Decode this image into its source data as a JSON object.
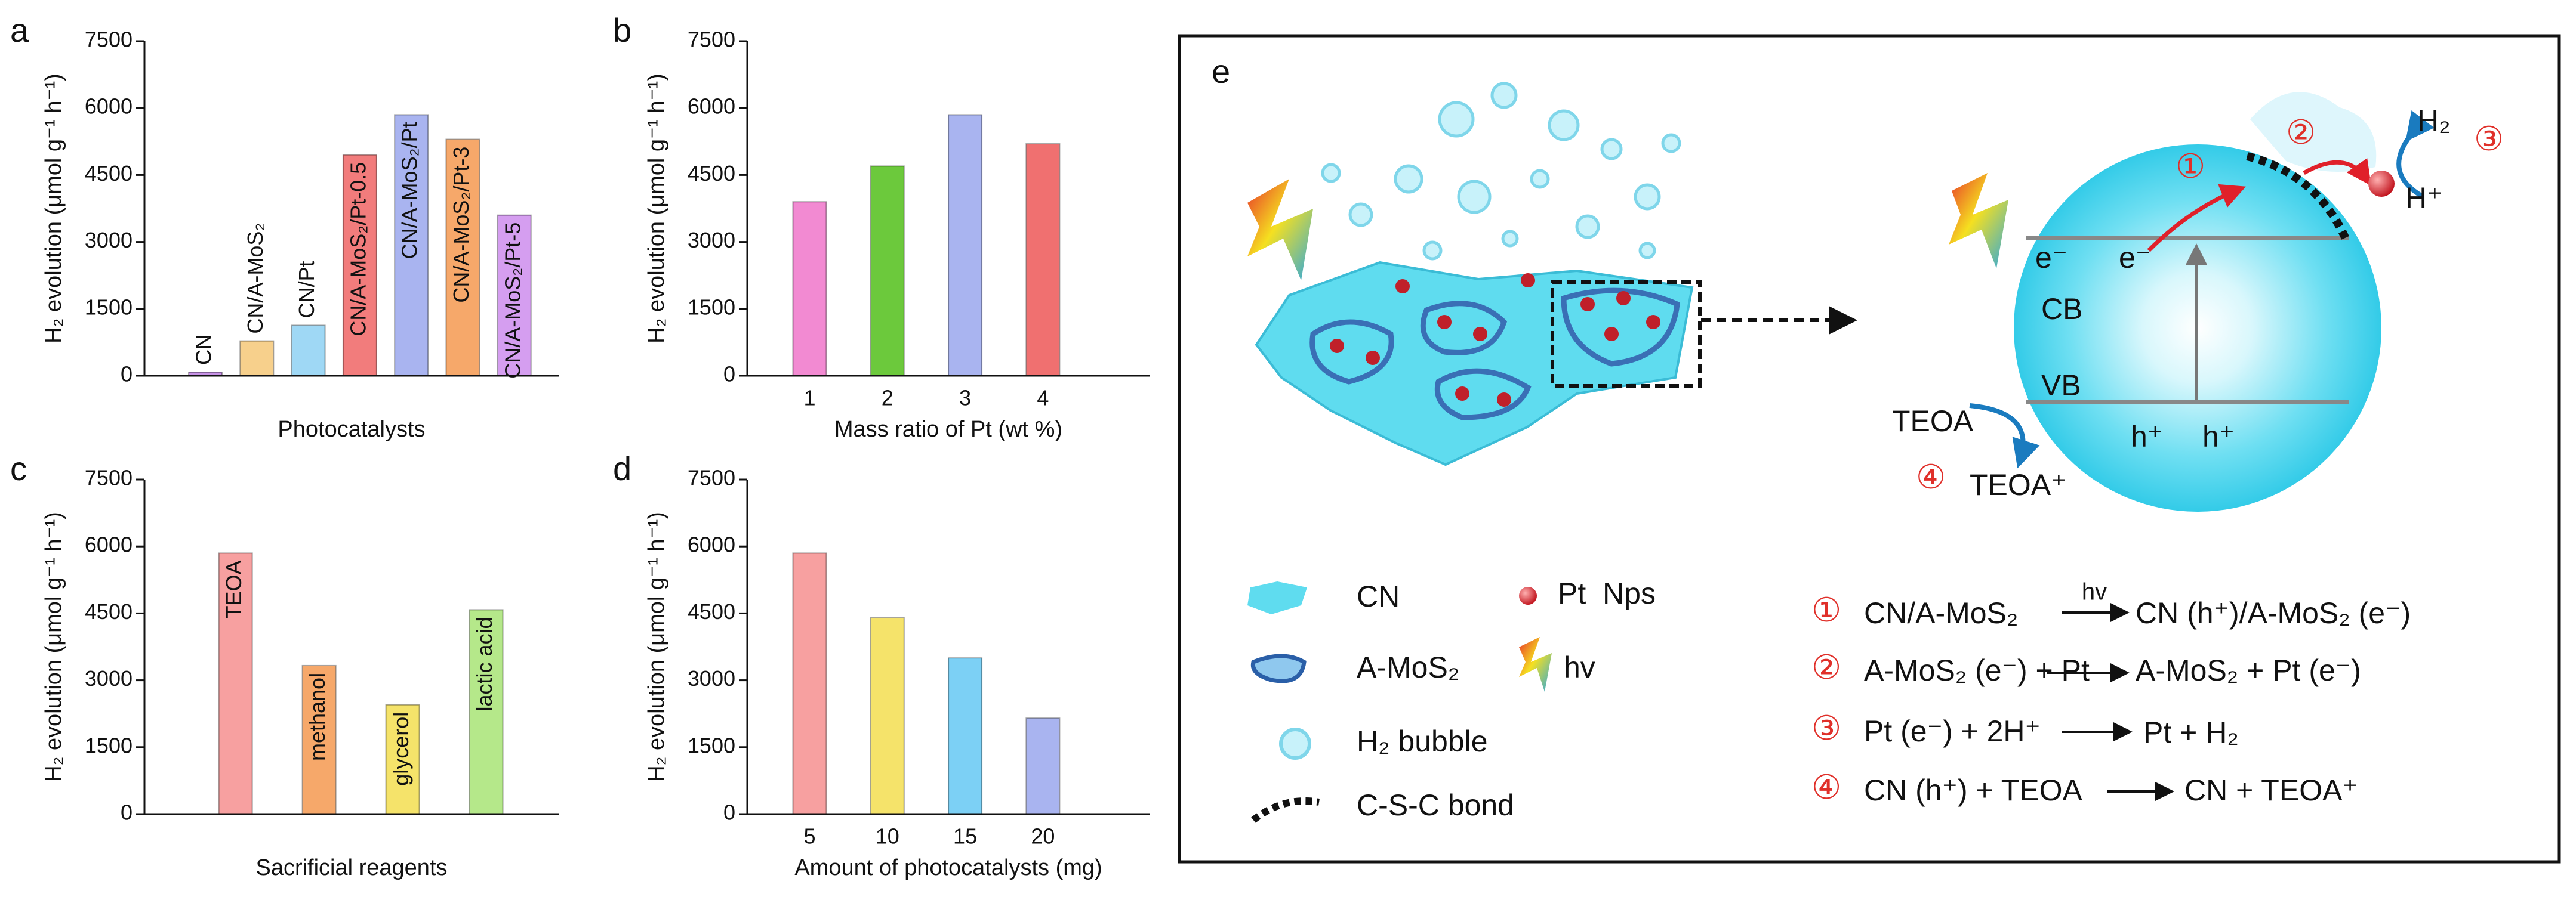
{
  "chart_data": [
    {
      "type": "bar",
      "panel": "a",
      "ylabel": "H₂ evolution (μmol g⁻¹ h⁻¹)",
      "xlabel": "Photocatalysts",
      "category_labels": "bar",
      "categories": [
        "CN",
        "CN/A-MoS₂",
        "CN/Pt",
        "CN/A-MoS₂/Pt-0.5",
        "CN/A-MoS₂/Pt",
        "CN/A-MoS₂/Pt-3",
        "CN/A-MoS₂/Pt-5"
      ],
      "values": [
        80,
        780,
        1130,
        4950,
        5850,
        5300,
        3600
      ],
      "colors": [
        "#c792e6",
        "#f7d08c",
        "#9fd8f5",
        "#f27c7c",
        "#a9b4f0",
        "#f6a86a",
        "#d59ef0"
      ],
      "ylim": [
        0,
        7500
      ],
      "yticks": [
        0,
        1500,
        3000,
        4500,
        6000,
        7500
      ]
    },
    {
      "type": "bar",
      "panel": "b",
      "ylabel": "H₂ evolution (μmol g⁻¹ h⁻¹)",
      "xlabel": "Mass ratio of Pt (wt %)",
      "category_labels": "axis",
      "categories": [
        "1",
        "2",
        "3",
        "4"
      ],
      "values": [
        3900,
        4700,
        5850,
        5200
      ],
      "colors": [
        "#f28ad2",
        "#6cc93c",
        "#a9b4f0",
        "#f07070"
      ],
      "ylim": [
        0,
        7500
      ],
      "yticks": [
        0,
        1500,
        3000,
        4500,
        6000,
        7500
      ]
    },
    {
      "type": "bar",
      "panel": "c",
      "ylabel": "H₂ evolution (μmol g⁻¹ h⁻¹)",
      "xlabel": "Sacrificial reagents",
      "category_labels": "bar",
      "categories": [
        "TEOA",
        "methanol",
        "glycerol",
        "lactic acid"
      ],
      "values": [
        5850,
        3330,
        2450,
        4580
      ],
      "colors": [
        "#f7a0a0",
        "#f6a86a",
        "#f5e36a",
        "#b5e88a"
      ],
      "ylim": [
        0,
        7500
      ],
      "yticks": [
        0,
        1500,
        3000,
        4500,
        6000,
        7500
      ]
    },
    {
      "type": "bar",
      "panel": "d",
      "ylabel": "H₂ evolution (μmol g⁻¹ h⁻¹)",
      "xlabel": "Amount of photocatalysts (mg)",
      "category_labels": "axis",
      "categories": [
        "5",
        "10",
        "15",
        "20"
      ],
      "values": [
        5850,
        4400,
        3500,
        2150
      ],
      "colors": [
        "#f7a0a0",
        "#f5e36a",
        "#7cd0f5",
        "#a9b4f0"
      ],
      "ylim": [
        0,
        7500
      ],
      "yticks": [
        0,
        1500,
        3000,
        4500,
        6000,
        7500
      ]
    }
  ],
  "diagram": {
    "panel": "e",
    "cb": "CB",
    "vb": "VB",
    "electrons": [
      "e⁻",
      "e⁻"
    ],
    "holes": [
      "h⁺",
      "h⁺"
    ],
    "teoa": "TEOA",
    "teoa_plus": "TEOA⁺",
    "h2": "H₂",
    "h_plus": "H⁺",
    "steps": [
      "①",
      "②",
      "③",
      "④"
    ],
    "legend": [
      "CN",
      "A-MoS₂",
      "H₂ bubble",
      "C-S-C bond",
      "Pt  Nps",
      "hv"
    ],
    "reactions": [
      {
        "number": "①",
        "left": "CN/A-MoS₂",
        "over": "hv",
        "right": "CN (h⁺)/A-MoS₂ (e⁻)"
      },
      {
        "number": "②",
        "left": "A-MoS₂ (e⁻) + Pt",
        "right": "A-MoS₂ + Pt (e⁻)"
      },
      {
        "number": "③",
        "left": "Pt (e⁻) + 2H⁺",
        "right": "Pt + H₂"
      },
      {
        "number": "④",
        "left": "CN (h⁺) + TEOA",
        "right": "CN + TEOA⁺"
      }
    ]
  }
}
